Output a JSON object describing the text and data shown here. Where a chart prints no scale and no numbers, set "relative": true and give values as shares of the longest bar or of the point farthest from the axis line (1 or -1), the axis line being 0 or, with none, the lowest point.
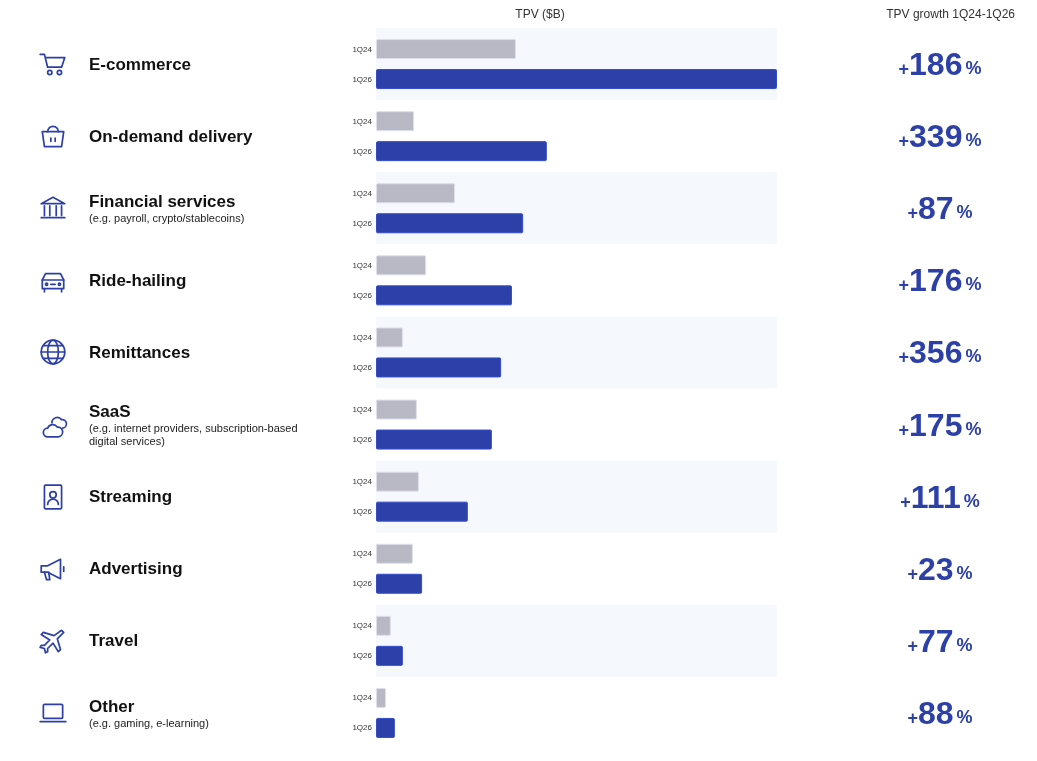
{
  "chart_data": {
    "type": "bar",
    "orientation": "horizontal",
    "relative": true,
    "legend": false,
    "xlabel": "TPV ($B)",
    "categories": [
      "E-commerce",
      "On-demand delivery",
      "Financial services\n(e.g. payroll, crypto/stablecoins)",
      "Ride-hailing",
      "Remittances",
      "SaaS\n(e.g. internet providers, subscription-based\ndigital services)",
      "Streaming",
      "Advertising",
      "Travel",
      "Other\n(e.g. gaming, e-learning)"
    ],
    "series": [
      {
        "name": "1Q24",
        "color": "#b9b9c6",
        "values": [
          0.349,
          0.095,
          0.197,
          0.125,
          0.067,
          0.102,
          0.107,
          0.092,
          0.037,
          0.025
        ]
      },
      {
        "name": "1Q26",
        "color": "#2c40a8",
        "values": [
          1,
          0.426,
          0.367,
          0.339,
          0.312,
          0.289,
          0.229,
          0.115,
          0.067,
          0.047
        ]
      }
    ],
    "annotations": [
      "TPV growth 1Q24-1Q26",
      "+186%",
      "+339%",
      "+87%",
      "+176%",
      "+356%",
      "+175%",
      "+111%",
      "+23%",
      "+77%",
      "+88%"
    ]
  }
}
